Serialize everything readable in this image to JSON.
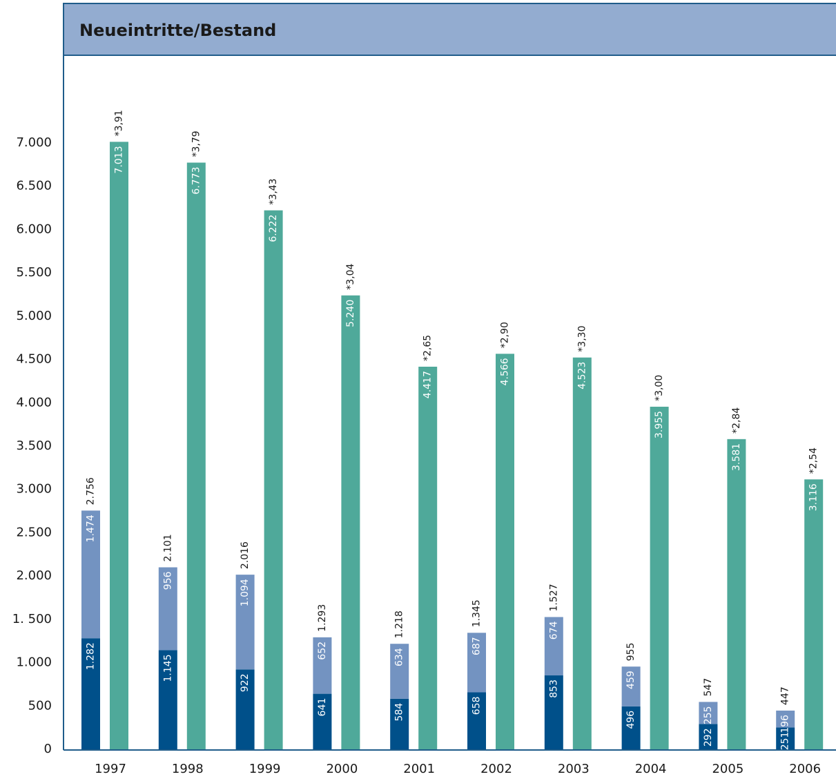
{
  "chart_data": {
    "type": "bar",
    "title": "Neueintritte/Bestand",
    "categories": [
      "1997",
      "1998",
      "1999",
      "2000",
      "2001",
      "2002",
      "2003",
      "2004",
      "2005",
      "2006"
    ],
    "series": [
      {
        "color": "#00508a",
        "stack": "a",
        "values": [
          1282,
          1145,
          922,
          641,
          584,
          658,
          853,
          496,
          292,
          251
        ],
        "value_labels": [
          "1.282",
          "1.145",
          "922",
          "641",
          "584",
          "658",
          "853",
          "496",
          "292",
          "251"
        ]
      },
      {
        "color": "#7393c1",
        "stack": "a",
        "values": [
          1474,
          956,
          1094,
          652,
          634,
          687,
          674,
          459,
          255,
          196
        ],
        "value_labels": [
          "1.474",
          "956",
          "1.094",
          "652",
          "634",
          "687",
          "674",
          "459",
          "255",
          "196"
        ]
      },
      {
        "color": "#4fa99a",
        "stack": "b",
        "values": [
          7013,
          6773,
          6222,
          5240,
          4417,
          4566,
          4523,
          3955,
          3581,
          3116
        ],
        "value_labels": [
          "7.013",
          "6.773",
          "6.222",
          "5.240",
          "4.417",
          "4.566",
          "4.523",
          "3.955",
          "3.581",
          "3.116"
        ]
      }
    ],
    "totals": [
      2756,
      2101,
      2016,
      1293,
      1218,
      1345,
      1527,
      955,
      547,
      447
    ],
    "total_labels": [
      "2.756",
      "2.101",
      "2.016",
      "1.293",
      "1.218",
      "1.345",
      "1.527",
      "955",
      "547",
      "447"
    ],
    "annotations": [
      "*3,91",
      "*3,79",
      "*3,43",
      "*3,04",
      "*2,65",
      "*2,90",
      "*3,30",
      "*3,00",
      "*2,84",
      "*2,54"
    ],
    "ylim": [
      0,
      7000
    ],
    "yticks": [
      0,
      500,
      {
        "value": 1000,
        "label": "1.000"
      },
      {
        "value": 1500,
        "label": "1. 500"
      },
      {
        "value": 2000,
        "label": "2.000"
      },
      {
        "value": 2500,
        "label": "2.500"
      },
      {
        "value": 3000,
        "label": "3.000"
      },
      {
        "value": 3500,
        "label": "3.500"
      },
      {
        "value": 4000,
        "label": "4.000"
      },
      {
        "value": 4500,
        "label": "4.500"
      },
      {
        "value": 5000,
        "label": "5.000"
      },
      {
        "value": 5500,
        "label": "5.500"
      },
      {
        "value": 6000,
        "label": "6.000"
      },
      {
        "value": 6500,
        "label": "6.500"
      },
      {
        "value": 7000,
        "label": "7.000"
      }
    ],
    "grid": false
  }
}
